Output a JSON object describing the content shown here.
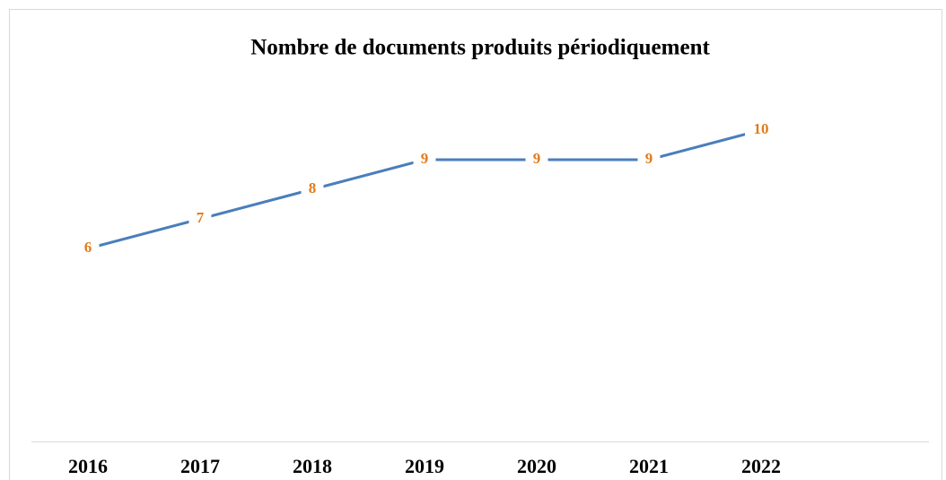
{
  "chart_data": {
    "type": "line",
    "title": "Nombre de documents produits périodiquement",
    "categories": [
      "2016",
      "2017",
      "2018",
      "2019",
      "2020",
      "2021",
      "2022"
    ],
    "values": [
      6,
      7,
      8,
      9,
      9,
      9,
      10
    ],
    "color": "#4a7ebb",
    "label_color": "#e07c1a",
    "ylim": [
      0,
      12
    ]
  }
}
